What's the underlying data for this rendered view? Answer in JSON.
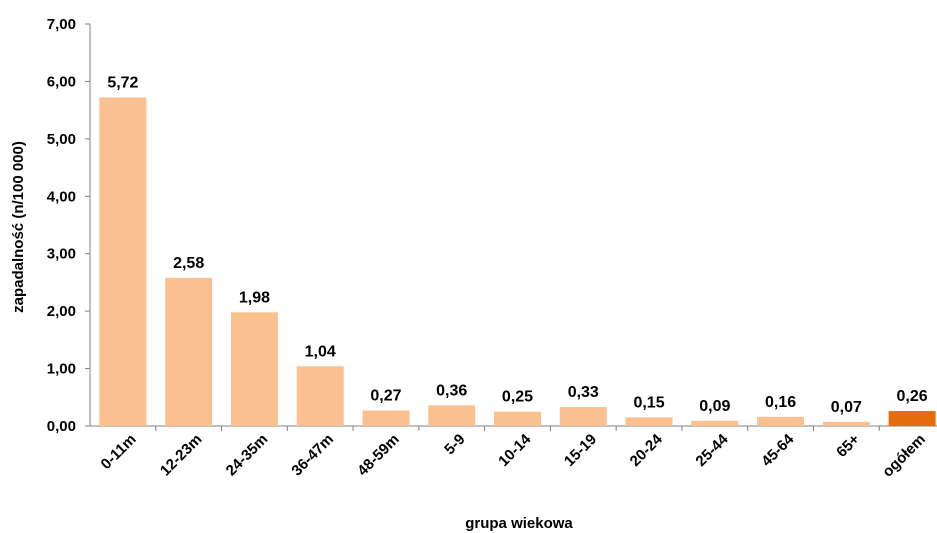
{
  "chart_data": {
    "type": "bar",
    "categories": [
      "0-11m",
      "12-23m",
      "24-35m",
      "36-47m",
      "48-59m",
      "5-9",
      "10-14",
      "15-19",
      "20-24",
      "25-44",
      "45-64",
      "65+",
      "ogółem"
    ],
    "values": [
      5.72,
      2.58,
      1.98,
      1.04,
      0.27,
      0.36,
      0.25,
      0.33,
      0.15,
      0.09,
      0.16,
      0.07,
      0.26
    ],
    "data_labels": [
      "5,72",
      "2,58",
      "1,98",
      "1,04",
      "0,27",
      "0,36",
      "0,25",
      "0,33",
      "0,15",
      "0,09",
      "0,16",
      "0,07",
      "0,26"
    ],
    "title": "",
    "xlabel": "grupa wiekowa",
    "ylabel": "zapadalność (n/100 000)",
    "ylim": [
      0,
      7
    ],
    "yticks": [
      "0,00",
      "1,00",
      "2,00",
      "3,00",
      "4,00",
      "5,00",
      "6,00",
      "7,00"
    ],
    "grid": false,
    "legend": "none",
    "colors": {
      "bar": "#FAC090",
      "highlight_bar": "#E46C0A",
      "axis": "#808080"
    },
    "highlight_category": "ogółem"
  }
}
